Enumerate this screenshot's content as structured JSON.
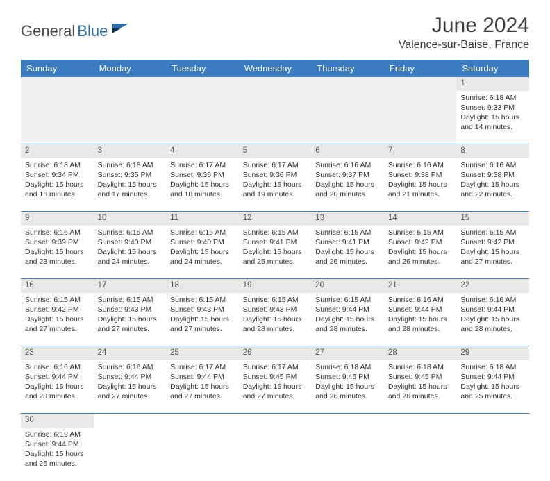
{
  "logo": {
    "text1": "General",
    "text2": "Blue"
  },
  "title": "June 2024",
  "location": "Valence-sur-Baise, France",
  "header_bg": "#3a7cbf",
  "weekdays": [
    "Sunday",
    "Monday",
    "Tuesday",
    "Wednesday",
    "Thursday",
    "Friday",
    "Saturday"
  ],
  "weeks": [
    {
      "nums": [
        "",
        "",
        "",
        "",
        "",
        "",
        "1"
      ],
      "cells": [
        null,
        null,
        null,
        null,
        null,
        null,
        {
          "sunrise": "Sunrise: 6:18 AM",
          "sunset": "Sunset: 9:33 PM",
          "day1": "Daylight: 15 hours",
          "day2": "and 14 minutes."
        }
      ]
    },
    {
      "nums": [
        "2",
        "3",
        "4",
        "5",
        "6",
        "7",
        "8"
      ],
      "cells": [
        {
          "sunrise": "Sunrise: 6:18 AM",
          "sunset": "Sunset: 9:34 PM",
          "day1": "Daylight: 15 hours",
          "day2": "and 16 minutes."
        },
        {
          "sunrise": "Sunrise: 6:18 AM",
          "sunset": "Sunset: 9:35 PM",
          "day1": "Daylight: 15 hours",
          "day2": "and 17 minutes."
        },
        {
          "sunrise": "Sunrise: 6:17 AM",
          "sunset": "Sunset: 9:36 PM",
          "day1": "Daylight: 15 hours",
          "day2": "and 18 minutes."
        },
        {
          "sunrise": "Sunrise: 6:17 AM",
          "sunset": "Sunset: 9:36 PM",
          "day1": "Daylight: 15 hours",
          "day2": "and 19 minutes."
        },
        {
          "sunrise": "Sunrise: 6:16 AM",
          "sunset": "Sunset: 9:37 PM",
          "day1": "Daylight: 15 hours",
          "day2": "and 20 minutes."
        },
        {
          "sunrise": "Sunrise: 6:16 AM",
          "sunset": "Sunset: 9:38 PM",
          "day1": "Daylight: 15 hours",
          "day2": "and 21 minutes."
        },
        {
          "sunrise": "Sunrise: 6:16 AM",
          "sunset": "Sunset: 9:38 PM",
          "day1": "Daylight: 15 hours",
          "day2": "and 22 minutes."
        }
      ]
    },
    {
      "nums": [
        "9",
        "10",
        "11",
        "12",
        "13",
        "14",
        "15"
      ],
      "cells": [
        {
          "sunrise": "Sunrise: 6:16 AM",
          "sunset": "Sunset: 9:39 PM",
          "day1": "Daylight: 15 hours",
          "day2": "and 23 minutes."
        },
        {
          "sunrise": "Sunrise: 6:15 AM",
          "sunset": "Sunset: 9:40 PM",
          "day1": "Daylight: 15 hours",
          "day2": "and 24 minutes."
        },
        {
          "sunrise": "Sunrise: 6:15 AM",
          "sunset": "Sunset: 9:40 PM",
          "day1": "Daylight: 15 hours",
          "day2": "and 24 minutes."
        },
        {
          "sunrise": "Sunrise: 6:15 AM",
          "sunset": "Sunset: 9:41 PM",
          "day1": "Daylight: 15 hours",
          "day2": "and 25 minutes."
        },
        {
          "sunrise": "Sunrise: 6:15 AM",
          "sunset": "Sunset: 9:41 PM",
          "day1": "Daylight: 15 hours",
          "day2": "and 26 minutes."
        },
        {
          "sunrise": "Sunrise: 6:15 AM",
          "sunset": "Sunset: 9:42 PM",
          "day1": "Daylight: 15 hours",
          "day2": "and 26 minutes."
        },
        {
          "sunrise": "Sunrise: 6:15 AM",
          "sunset": "Sunset: 9:42 PM",
          "day1": "Daylight: 15 hours",
          "day2": "and 27 minutes."
        }
      ]
    },
    {
      "nums": [
        "16",
        "17",
        "18",
        "19",
        "20",
        "21",
        "22"
      ],
      "cells": [
        {
          "sunrise": "Sunrise: 6:15 AM",
          "sunset": "Sunset: 9:42 PM",
          "day1": "Daylight: 15 hours",
          "day2": "and 27 minutes."
        },
        {
          "sunrise": "Sunrise: 6:15 AM",
          "sunset": "Sunset: 9:43 PM",
          "day1": "Daylight: 15 hours",
          "day2": "and 27 minutes."
        },
        {
          "sunrise": "Sunrise: 6:15 AM",
          "sunset": "Sunset: 9:43 PM",
          "day1": "Daylight: 15 hours",
          "day2": "and 27 minutes."
        },
        {
          "sunrise": "Sunrise: 6:15 AM",
          "sunset": "Sunset: 9:43 PM",
          "day1": "Daylight: 15 hours",
          "day2": "and 28 minutes."
        },
        {
          "sunrise": "Sunrise: 6:15 AM",
          "sunset": "Sunset: 9:44 PM",
          "day1": "Daylight: 15 hours",
          "day2": "and 28 minutes."
        },
        {
          "sunrise": "Sunrise: 6:16 AM",
          "sunset": "Sunset: 9:44 PM",
          "day1": "Daylight: 15 hours",
          "day2": "and 28 minutes."
        },
        {
          "sunrise": "Sunrise: 6:16 AM",
          "sunset": "Sunset: 9:44 PM",
          "day1": "Daylight: 15 hours",
          "day2": "and 28 minutes."
        }
      ]
    },
    {
      "nums": [
        "23",
        "24",
        "25",
        "26",
        "27",
        "28",
        "29"
      ],
      "cells": [
        {
          "sunrise": "Sunrise: 6:16 AM",
          "sunset": "Sunset: 9:44 PM",
          "day1": "Daylight: 15 hours",
          "day2": "and 28 minutes."
        },
        {
          "sunrise": "Sunrise: 6:16 AM",
          "sunset": "Sunset: 9:44 PM",
          "day1": "Daylight: 15 hours",
          "day2": "and 27 minutes."
        },
        {
          "sunrise": "Sunrise: 6:17 AM",
          "sunset": "Sunset: 9:44 PM",
          "day1": "Daylight: 15 hours",
          "day2": "and 27 minutes."
        },
        {
          "sunrise": "Sunrise: 6:17 AM",
          "sunset": "Sunset: 9:45 PM",
          "day1": "Daylight: 15 hours",
          "day2": "and 27 minutes."
        },
        {
          "sunrise": "Sunrise: 6:18 AM",
          "sunset": "Sunset: 9:45 PM",
          "day1": "Daylight: 15 hours",
          "day2": "and 26 minutes."
        },
        {
          "sunrise": "Sunrise: 6:18 AM",
          "sunset": "Sunset: 9:45 PM",
          "day1": "Daylight: 15 hours",
          "day2": "and 26 minutes."
        },
        {
          "sunrise": "Sunrise: 6:18 AM",
          "sunset": "Sunset: 9:44 PM",
          "day1": "Daylight: 15 hours",
          "day2": "and 25 minutes."
        }
      ]
    },
    {
      "nums": [
        "30",
        "",
        "",
        "",
        "",
        "",
        ""
      ],
      "cells": [
        {
          "sunrise": "Sunrise: 6:19 AM",
          "sunset": "Sunset: 9:44 PM",
          "day1": "Daylight: 15 hours",
          "day2": "and 25 minutes."
        },
        null,
        null,
        null,
        null,
        null,
        null
      ],
      "last": true
    }
  ]
}
